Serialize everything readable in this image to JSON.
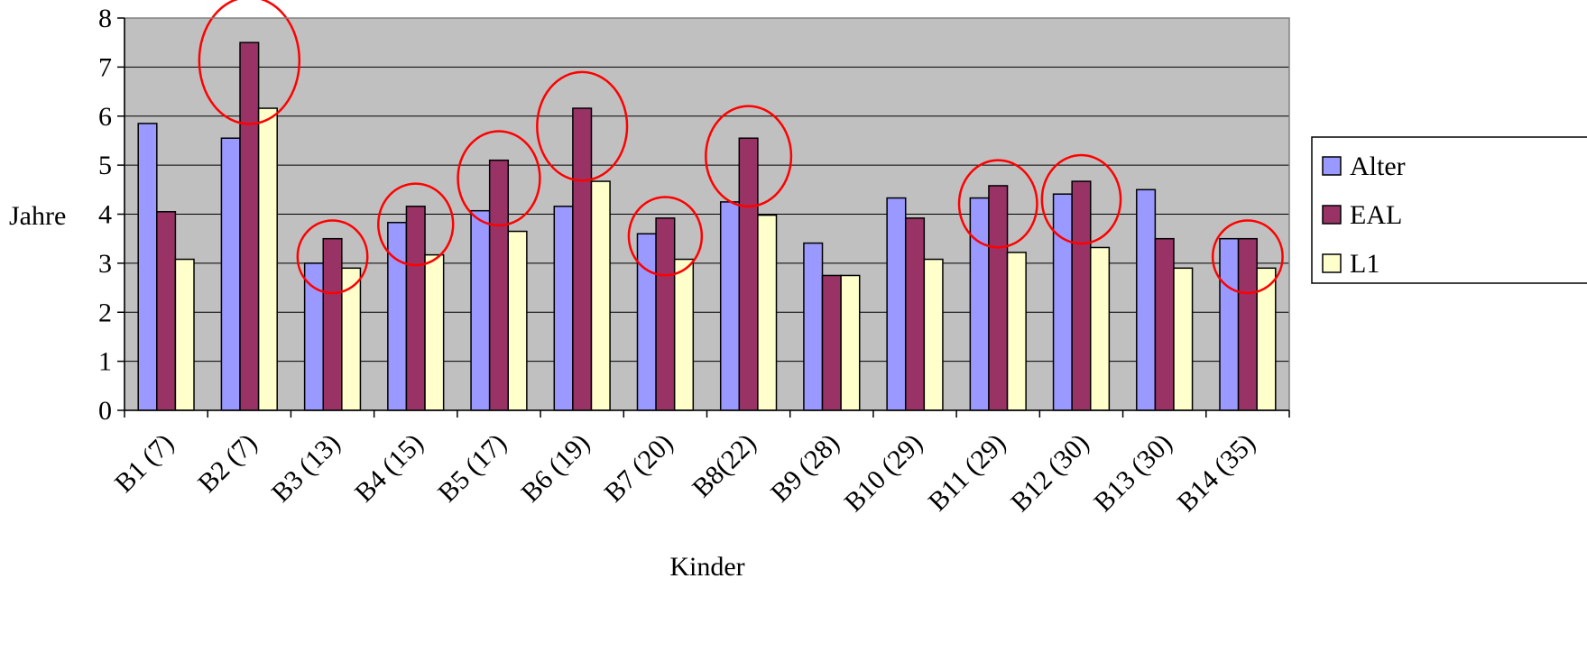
{
  "chart_data": {
    "type": "bar",
    "title": "",
    "xlabel": "Kinder",
    "ylabel": "Jahre",
    "ylim": [
      0,
      8
    ],
    "yticks": [
      0,
      1,
      2,
      3,
      4,
      5,
      6,
      7,
      8
    ],
    "grid": true,
    "plot_background": "#c0c0c0",
    "legend_position": "right",
    "categories": [
      "B1 (7)",
      "B2 (7)",
      "B3 (13)",
      "B4 (15)",
      "B5 (17)",
      "B6 (19)",
      "B7 (20)",
      "B8(22)",
      "B9 (28)",
      "B10 (29)",
      "B11 (29)",
      "B12 (30)",
      "B13 (30)",
      "B14 (35)"
    ],
    "series": [
      {
        "name": "Alter",
        "color": "#9999ff",
        "values": [
          5.85,
          5.55,
          3.0,
          3.83,
          4.07,
          4.16,
          3.6,
          4.25,
          3.41,
          4.33,
          4.33,
          4.41,
          4.5,
          3.5
        ]
      },
      {
        "name": "EAL",
        "color": "#993366",
        "values": [
          4.05,
          7.5,
          3.5,
          4.16,
          5.1,
          6.16,
          3.92,
          5.55,
          2.75,
          3.92,
          4.58,
          4.67,
          3.5,
          3.5
        ]
      },
      {
        "name": "L1",
        "color": "#ffffcc",
        "values": [
          3.08,
          6.16,
          2.9,
          3.17,
          3.65,
          4.67,
          3.08,
          3.98,
          2.75,
          3.08,
          3.22,
          3.32,
          2.9,
          2.9
        ]
      }
    ],
    "annotations": {
      "type": "highlight-ellipse",
      "color": "#ff0000",
      "categories": [
        "B2 (7)",
        "B3 (13)",
        "B4 (15)",
        "B5 (17)",
        "B6 (19)",
        "B7 (20)",
        "B8(22)",
        "B11 (29)",
        "B12 (30)",
        "B14 (35)"
      ]
    }
  }
}
